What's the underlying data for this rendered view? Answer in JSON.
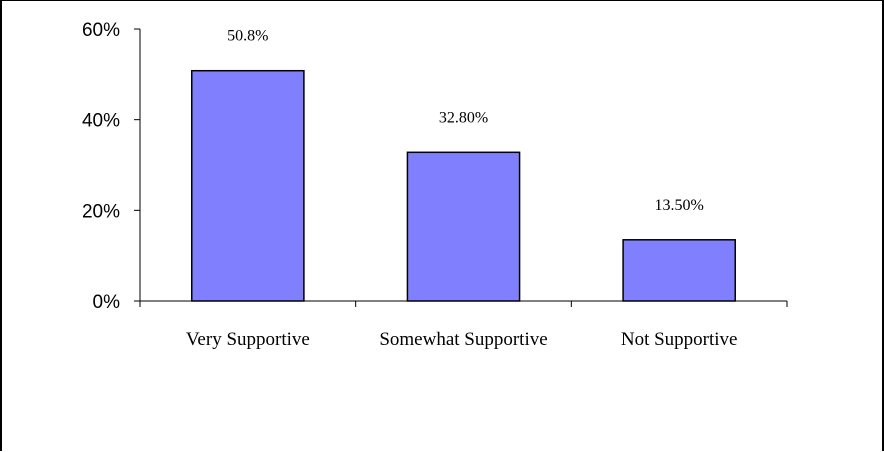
{
  "chart_data": {
    "type": "bar",
    "categories": [
      "Very Supportive",
      "Somewhat Supportive",
      "Not Supportive"
    ],
    "values": [
      50.8,
      32.8,
      13.5
    ],
    "data_labels": [
      "50.8%",
      "32.80%",
      "13.50%"
    ],
    "yticks": [
      "0%",
      "20%",
      "40%",
      "60%"
    ],
    "ylim": [
      0,
      60
    ],
    "title": "",
    "xlabel": "",
    "ylabel": "",
    "grid": false,
    "legend": "none",
    "bar_color": "#8080ff",
    "bar_edge_color": "#000000"
  }
}
